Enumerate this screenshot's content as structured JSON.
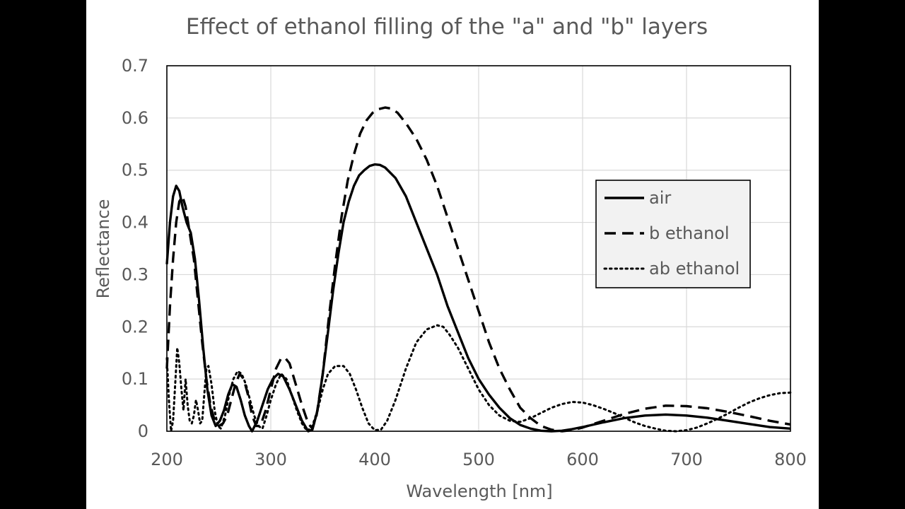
{
  "chart_data": {
    "type": "line",
    "title": "Effect of ethanol filling of the \"a\" and \"b\" layers",
    "xlabel": "Wavelength [nm]",
    "ylabel": "Reflectance",
    "xlim": [
      200,
      800
    ],
    "ylim": [
      0,
      0.7
    ],
    "xticks": [
      200,
      300,
      400,
      500,
      600,
      700,
      800
    ],
    "yticks": [
      0,
      0.1,
      0.2,
      0.3,
      0.4,
      0.5,
      0.6,
      0.7
    ],
    "xtick_labels": [
      "200",
      "300",
      "400",
      "500",
      "600",
      "700",
      "800"
    ],
    "ytick_labels": [
      "0",
      "0.1",
      "0.2",
      "0.3",
      "0.4",
      "0.5",
      "0.6",
      "0.7"
    ],
    "grid": true,
    "legend": {
      "placement": "right"
    },
    "series": [
      {
        "name": "air",
        "style": "solid",
        "color": "#000000",
        "points": [
          [
            200,
            0.32
          ],
          [
            203,
            0.4
          ],
          [
            206,
            0.45
          ],
          [
            209,
            0.47
          ],
          [
            212,
            0.46
          ],
          [
            215,
            0.43
          ],
          [
            219,
            0.4
          ],
          [
            223,
            0.38
          ],
          [
            227,
            0.33
          ],
          [
            231,
            0.25
          ],
          [
            235,
            0.16
          ],
          [
            239,
            0.08
          ],
          [
            243,
            0.03
          ],
          [
            247,
            0.01
          ],
          [
            251,
            0.02
          ],
          [
            255,
            0.04
          ],
          [
            259,
            0.07
          ],
          [
            263,
            0.09
          ],
          [
            267,
            0.085
          ],
          [
            271,
            0.06
          ],
          [
            275,
            0.03
          ],
          [
            279,
            0.01
          ],
          [
            282,
            0.0
          ],
          [
            287,
            0.02
          ],
          [
            292,
            0.05
          ],
          [
            297,
            0.08
          ],
          [
            302,
            0.1
          ],
          [
            307,
            0.11
          ],
          [
            312,
            0.105
          ],
          [
            318,
            0.08
          ],
          [
            324,
            0.05
          ],
          [
            330,
            0.02
          ],
          [
            336,
            0.0
          ],
          [
            340,
            0.003
          ],
          [
            345,
            0.04
          ],
          [
            350,
            0.11
          ],
          [
            355,
            0.19
          ],
          [
            360,
            0.27
          ],
          [
            365,
            0.34
          ],
          [
            370,
            0.4
          ],
          [
            375,
            0.44
          ],
          [
            380,
            0.47
          ],
          [
            385,
            0.49
          ],
          [
            390,
            0.5
          ],
          [
            395,
            0.508
          ],
          [
            400,
            0.511
          ],
          [
            405,
            0.51
          ],
          [
            410,
            0.505
          ],
          [
            420,
            0.485
          ],
          [
            430,
            0.45
          ],
          [
            440,
            0.4
          ],
          [
            450,
            0.35
          ],
          [
            460,
            0.3
          ],
          [
            470,
            0.24
          ],
          [
            480,
            0.19
          ],
          [
            490,
            0.14
          ],
          [
            500,
            0.1
          ],
          [
            510,
            0.07
          ],
          [
            520,
            0.045
          ],
          [
            530,
            0.025
          ],
          [
            540,
            0.012
          ],
          [
            550,
            0.005
          ],
          [
            560,
            0.001
          ],
          [
            570,
            0.0
          ],
          [
            580,
            0.001
          ],
          [
            590,
            0.004
          ],
          [
            600,
            0.008
          ],
          [
            620,
            0.017
          ],
          [
            640,
            0.025
          ],
          [
            660,
            0.03
          ],
          [
            680,
            0.032
          ],
          [
            700,
            0.03
          ],
          [
            720,
            0.026
          ],
          [
            740,
            0.02
          ],
          [
            760,
            0.014
          ],
          [
            780,
            0.008
          ],
          [
            800,
            0.005
          ]
        ]
      },
      {
        "name": "b ethanol",
        "style": "dashed",
        "color": "#000000",
        "points": [
          [
            200,
            0.12
          ],
          [
            203,
            0.24
          ],
          [
            206,
            0.33
          ],
          [
            209,
            0.4
          ],
          [
            212,
            0.44
          ],
          [
            215,
            0.45
          ],
          [
            218,
            0.43
          ],
          [
            222,
            0.38
          ],
          [
            226,
            0.33
          ],
          [
            230,
            0.25
          ],
          [
            234,
            0.17
          ],
          [
            238,
            0.1
          ],
          [
            242,
            0.05
          ],
          [
            246,
            0.02
          ],
          [
            250,
            0.01
          ],
          [
            254,
            0.015
          ],
          [
            258,
            0.03
          ],
          [
            262,
            0.06
          ],
          [
            266,
            0.09
          ],
          [
            270,
            0.11
          ],
          [
            274,
            0.1
          ],
          [
            278,
            0.07
          ],
          [
            282,
            0.03
          ],
          [
            286,
            0.01
          ],
          [
            290,
            0.01
          ],
          [
            295,
            0.04
          ],
          [
            300,
            0.08
          ],
          [
            305,
            0.12
          ],
          [
            310,
            0.14
          ],
          [
            314,
            0.14
          ],
          [
            318,
            0.13
          ],
          [
            324,
            0.09
          ],
          [
            330,
            0.05
          ],
          [
            336,
            0.015
          ],
          [
            340,
            0.005
          ],
          [
            344,
            0.03
          ],
          [
            350,
            0.11
          ],
          [
            356,
            0.22
          ],
          [
            362,
            0.32
          ],
          [
            368,
            0.41
          ],
          [
            374,
            0.48
          ],
          [
            380,
            0.53
          ],
          [
            386,
            0.57
          ],
          [
            392,
            0.595
          ],
          [
            398,
            0.61
          ],
          [
            404,
            0.617
          ],
          [
            410,
            0.62
          ],
          [
            416,
            0.618
          ],
          [
            422,
            0.61
          ],
          [
            430,
            0.59
          ],
          [
            440,
            0.56
          ],
          [
            450,
            0.52
          ],
          [
            460,
            0.47
          ],
          [
            470,
            0.41
          ],
          [
            480,
            0.35
          ],
          [
            490,
            0.29
          ],
          [
            500,
            0.23
          ],
          [
            510,
            0.17
          ],
          [
            520,
            0.12
          ],
          [
            530,
            0.08
          ],
          [
            540,
            0.045
          ],
          [
            550,
            0.025
          ],
          [
            560,
            0.01
          ],
          [
            570,
            0.003
          ],
          [
            580,
            0.0
          ],
          [
            590,
            0.002
          ],
          [
            600,
            0.007
          ],
          [
            620,
            0.02
          ],
          [
            640,
            0.033
          ],
          [
            660,
            0.043
          ],
          [
            680,
            0.049
          ],
          [
            700,
            0.048
          ],
          [
            720,
            0.044
          ],
          [
            740,
            0.037
          ],
          [
            760,
            0.029
          ],
          [
            780,
            0.02
          ],
          [
            800,
            0.013
          ]
        ]
      },
      {
        "name": "ab ethanol",
        "style": "dotted",
        "color": "#000000",
        "points": [
          [
            200,
            0.14
          ],
          [
            202,
            0.06
          ],
          [
            204,
            0.0
          ],
          [
            206,
            0.02
          ],
          [
            208,
            0.09
          ],
          [
            210,
            0.16
          ],
          [
            212,
            0.13
          ],
          [
            214,
            0.08
          ],
          [
            216,
            0.04
          ],
          [
            218,
            0.1
          ],
          [
            220,
            0.05
          ],
          [
            222,
            0.02
          ],
          [
            224,
            0.015
          ],
          [
            226,
            0.03
          ],
          [
            228,
            0.06
          ],
          [
            230,
            0.04
          ],
          [
            232,
            0.015
          ],
          [
            234,
            0.02
          ],
          [
            236,
            0.07
          ],
          [
            238,
            0.12
          ],
          [
            240,
            0.125
          ],
          [
            243,
            0.09
          ],
          [
            246,
            0.04
          ],
          [
            249,
            0.01
          ],
          [
            252,
            0.005
          ],
          [
            256,
            0.03
          ],
          [
            260,
            0.07
          ],
          [
            264,
            0.1
          ],
          [
            268,
            0.115
          ],
          [
            272,
            0.11
          ],
          [
            276,
            0.09
          ],
          [
            280,
            0.06
          ],
          [
            284,
            0.03
          ],
          [
            288,
            0.01
          ],
          [
            292,
            0.005
          ],
          [
            296,
            0.03
          ],
          [
            300,
            0.06
          ],
          [
            305,
            0.09
          ],
          [
            310,
            0.11
          ],
          [
            315,
            0.1
          ],
          [
            320,
            0.07
          ],
          [
            325,
            0.04
          ],
          [
            330,
            0.015
          ],
          [
            335,
            0.0
          ],
          [
            340,
            0.01
          ],
          [
            345,
            0.04
          ],
          [
            350,
            0.08
          ],
          [
            355,
            0.11
          ],
          [
            362,
            0.125
          ],
          [
            370,
            0.125
          ],
          [
            376,
            0.11
          ],
          [
            382,
            0.08
          ],
          [
            388,
            0.045
          ],
          [
            394,
            0.015
          ],
          [
            400,
            0.002
          ],
          [
            406,
            0.003
          ],
          [
            412,
            0.02
          ],
          [
            420,
            0.06
          ],
          [
            430,
            0.12
          ],
          [
            440,
            0.17
          ],
          [
            450,
            0.195
          ],
          [
            460,
            0.203
          ],
          [
            466,
            0.2
          ],
          [
            472,
            0.185
          ],
          [
            480,
            0.16
          ],
          [
            490,
            0.12
          ],
          [
            500,
            0.08
          ],
          [
            510,
            0.05
          ],
          [
            520,
            0.03
          ],
          [
            530,
            0.02
          ],
          [
            540,
            0.018
          ],
          [
            550,
            0.025
          ],
          [
            560,
            0.035
          ],
          [
            570,
            0.045
          ],
          [
            580,
            0.052
          ],
          [
            590,
            0.056
          ],
          [
            600,
            0.055
          ],
          [
            610,
            0.05
          ],
          [
            620,
            0.043
          ],
          [
            630,
            0.035
          ],
          [
            640,
            0.026
          ],
          [
            650,
            0.017
          ],
          [
            660,
            0.01
          ],
          [
            670,
            0.005
          ],
          [
            680,
            0.001
          ],
          [
            690,
            0.0
          ],
          [
            700,
            0.002
          ],
          [
            710,
            0.007
          ],
          [
            720,
            0.015
          ],
          [
            730,
            0.024
          ],
          [
            740,
            0.034
          ],
          [
            750,
            0.045
          ],
          [
            760,
            0.055
          ],
          [
            770,
            0.063
          ],
          [
            780,
            0.069
          ],
          [
            790,
            0.073
          ],
          [
            800,
            0.074
          ]
        ]
      }
    ]
  }
}
